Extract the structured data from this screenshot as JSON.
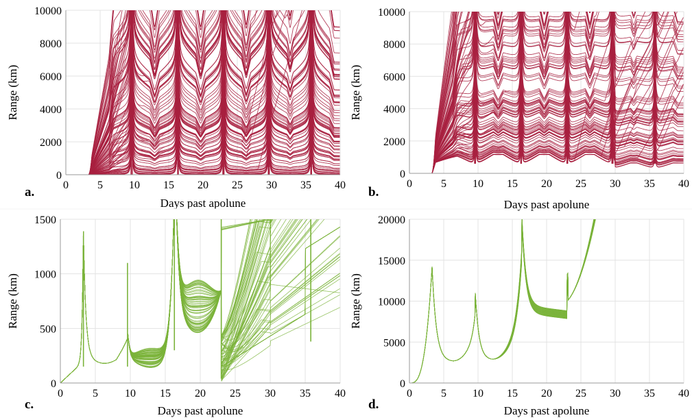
{
  "chart_data": [
    {
      "id": "a",
      "panel_label": "a.",
      "type": "line",
      "xlabel": "Days past apolune",
      "ylabel": "Range (km)",
      "xlim": [
        0,
        40
      ],
      "ylim": [
        0,
        10000
      ],
      "xticks": [
        "0",
        "5",
        "10",
        "15",
        "20",
        "25",
        "30",
        "35",
        "40"
      ],
      "yticks": [
        "0",
        "2000",
        "4000",
        "6000",
        "8000",
        "10000"
      ],
      "line_color": "#a8203f",
      "grid": true,
      "series_description": "ensemble of ~150 range trajectories starting near day 3.3, spiking to the top of axis near days 9.6, 16.3, 23, 29.6, 35.8",
      "spike_days": [
        9.6,
        16.3,
        23.0,
        29.6,
        35.8
      ],
      "start_day": 3.3
    },
    {
      "id": "b",
      "panel_label": "b.",
      "type": "line",
      "xlabel": "Days past apolune",
      "ylabel": "Range (km)",
      "xlim": [
        0,
        40
      ],
      "ylim": [
        0,
        10000
      ],
      "xticks": [
        "0",
        "5",
        "10",
        "15",
        "20",
        "25",
        "30",
        "35",
        "40"
      ],
      "yticks": [
        "0",
        "2000",
        "4000",
        "6000",
        "8000",
        "10000"
      ],
      "line_color": "#a8203f",
      "grid": true,
      "spike_days": [
        9.6,
        16.3,
        23.0,
        29.6,
        35.8
      ],
      "start_day": 3.3
    },
    {
      "id": "c",
      "panel_label": "c.",
      "type": "line",
      "xlabel": "Days past apolune",
      "ylabel": "Range (km)",
      "xlim": [
        0,
        40
      ],
      "ylim": [
        0,
        1500
      ],
      "xticks": [
        "0",
        "5",
        "10",
        "15",
        "20",
        "25",
        "30",
        "35",
        "40"
      ],
      "yticks": [
        "0",
        "500",
        "1000",
        "1500"
      ],
      "line_color": "#7ab33a",
      "grid": true,
      "spike_days": [
        3.3,
        9.6,
        16.3,
        23.0,
        35.8
      ],
      "start_day": 0
    },
    {
      "id": "d",
      "panel_label": "d.",
      "type": "line",
      "xlabel": "Days past apolune",
      "ylabel": "Range (km)",
      "xlim": [
        0,
        40
      ],
      "ylim": [
        0,
        20000
      ],
      "xticks": [
        "0",
        "5",
        "10",
        "15",
        "20",
        "25",
        "30",
        "35",
        "40"
      ],
      "yticks": [
        "0",
        "5000",
        "10000",
        "15000",
        "20000"
      ],
      "line_color": "#7ab33a",
      "grid": true,
      "key_points": [
        [
          0,
          0
        ],
        [
          3.3,
          14200
        ],
        [
          6,
          2600
        ],
        [
          9.6,
          11000
        ],
        [
          11.6,
          2800
        ],
        [
          16.4,
          20000
        ],
        [
          17.5,
          10500
        ],
        [
          22.9,
          8400
        ],
        [
          23.1,
          13300
        ],
        [
          27.5,
          20000
        ]
      ]
    }
  ]
}
